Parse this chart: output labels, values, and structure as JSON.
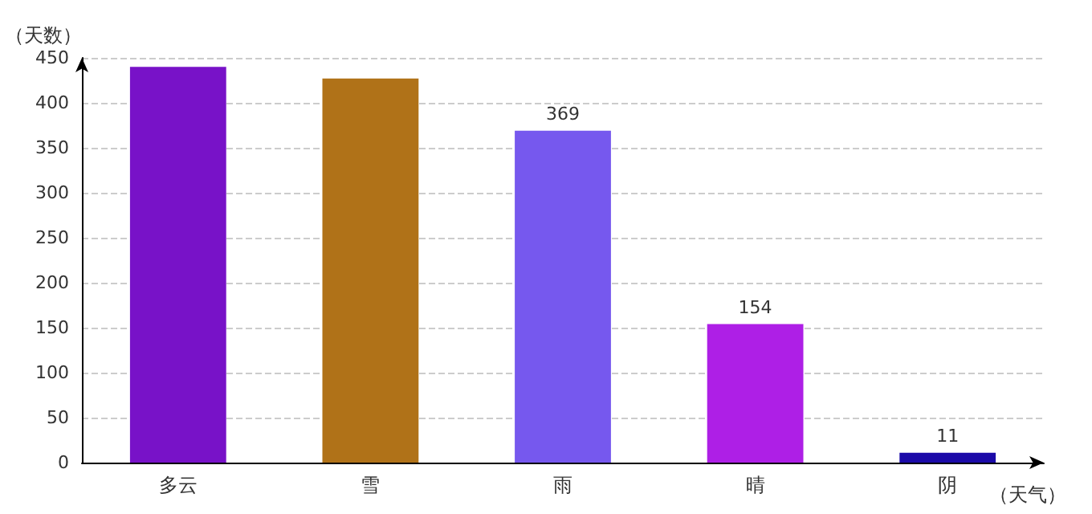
{
  "chart_data": {
    "type": "bar",
    "categories": [
      "多云",
      "雪",
      "雨",
      "晴",
      "阴"
    ],
    "values": [
      440,
      427,
      369,
      154,
      11
    ],
    "colors": [
      "#7812c8",
      "#b07218",
      "#7658ee",
      "#ae1fe6",
      "#1b0aa8"
    ],
    "value_labels": [
      null,
      null,
      "369",
      "154",
      "11"
    ],
    "xlabel": "（天气）",
    "ylabel": "（天数）",
    "ylim": [
      0,
      450
    ],
    "yticks": [
      0,
      50,
      100,
      150,
      200,
      250,
      300,
      350,
      400,
      450
    ],
    "grid": "y"
  }
}
